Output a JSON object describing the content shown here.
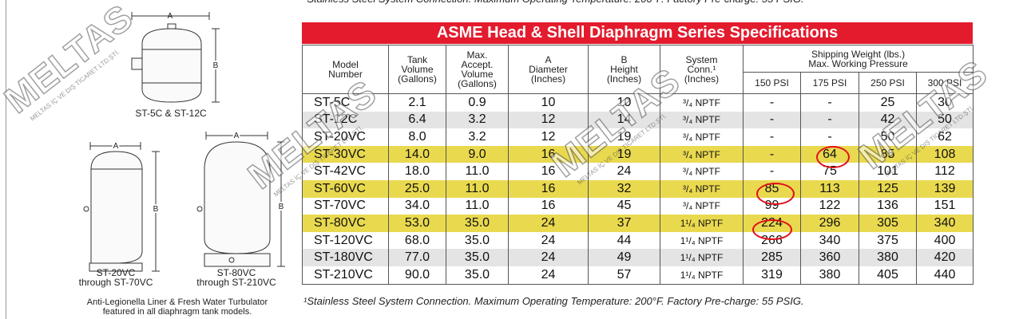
{
  "footnote": "¹Stainless Steel System Connection.  Maximum Operating Temperature: 200°F. Factory Pre-charge: 55 PSIG.",
  "diagrams": {
    "dim_a": "A",
    "dim_b": "B",
    "small_caption": "ST-5C & ST-12C",
    "mid_caption": [
      "ST-20VC",
      "through ST-70VC"
    ],
    "large_caption": [
      "ST-80VC",
      "through ST-210VC"
    ],
    "note": [
      "Anti-Legionella Liner & Fresh Water Turbulator",
      "featured in all diaphragm tank models."
    ]
  },
  "watermark": {
    "brand": "MELTAS",
    "company": "MELTAS İÇ VE DIŞ TİCARET LTD.ŞTİ."
  },
  "table": {
    "title": "ASME Head & Shell Diaphragm Series Specifications",
    "headers": {
      "model": [
        "Model",
        "Number"
      ],
      "tank": [
        "Tank",
        "Volume",
        "(Gallons)"
      ],
      "accept": [
        "Max.",
        "Accept.",
        "Volume",
        "(Gallons)"
      ],
      "diameter": [
        "A",
        "Diameter",
        "(Inches)"
      ],
      "height": [
        "B",
        "Height",
        "(Inches)"
      ],
      "conn": [
        "System",
        "Conn.¹",
        "(Inches)"
      ],
      "shipping": [
        "Shipping Weight (lbs.)",
        "Max. Working Pressure"
      ],
      "pressures": [
        "150 PSI",
        "175 PSI",
        "250 PSI",
        "300 PSI"
      ]
    },
    "rows": [
      [
        "ST-5C",
        "2.1",
        "0.9",
        "10",
        "10",
        "³/₄ NPTF",
        "-",
        "-",
        "25",
        "30"
      ],
      [
        "ST-12C",
        "6.4",
        "3.2",
        "12",
        "14",
        "³/₄ NPTF",
        "-",
        "-",
        "42",
        "50"
      ],
      [
        "ST-20VC",
        "8.0",
        "3.2",
        "12",
        "19",
        "³/₄ NPTF",
        "-",
        "-",
        "50",
        "62"
      ],
      [
        "ST-30VC",
        "14.0",
        "9.0",
        "16",
        "19",
        "³/₄ NPTF",
        "-",
        "64",
        "85",
        "108"
      ],
      [
        "ST-42VC",
        "18.0",
        "11.0",
        "16",
        "24",
        "³/₄ NPTF",
        "-",
        "75",
        "101",
        "112"
      ],
      [
        "ST-60VC",
        "25.0",
        "11.0",
        "16",
        "32",
        "³/₄ NPTF",
        "85",
        "113",
        "125",
        "139"
      ],
      [
        "ST-70VC",
        "34.0",
        "11.0",
        "16",
        "45",
        "³/₄ NPTF",
        "99",
        "122",
        "136",
        "151"
      ],
      [
        "ST-80VC",
        "53.0",
        "35.0",
        "24",
        "37",
        "1¹/₄ NPTF",
        "224",
        "296",
        "305",
        "340"
      ],
      [
        "ST-120VC",
        "68.0",
        "35.0",
        "24",
        "44",
        "1¹/₄ NPTF",
        "266",
        "340",
        "375",
        "400"
      ],
      [
        "ST-180VC",
        "77.0",
        "35.0",
        "24",
        "49",
        "1¹/₄ NPTF",
        "285",
        "360",
        "380",
        "420"
      ],
      [
        "ST-210VC",
        "90.0",
        "35.0",
        "24",
        "57",
        "1¹/₄ NPTF",
        "319",
        "380",
        "405",
        "440"
      ]
    ]
  }
}
